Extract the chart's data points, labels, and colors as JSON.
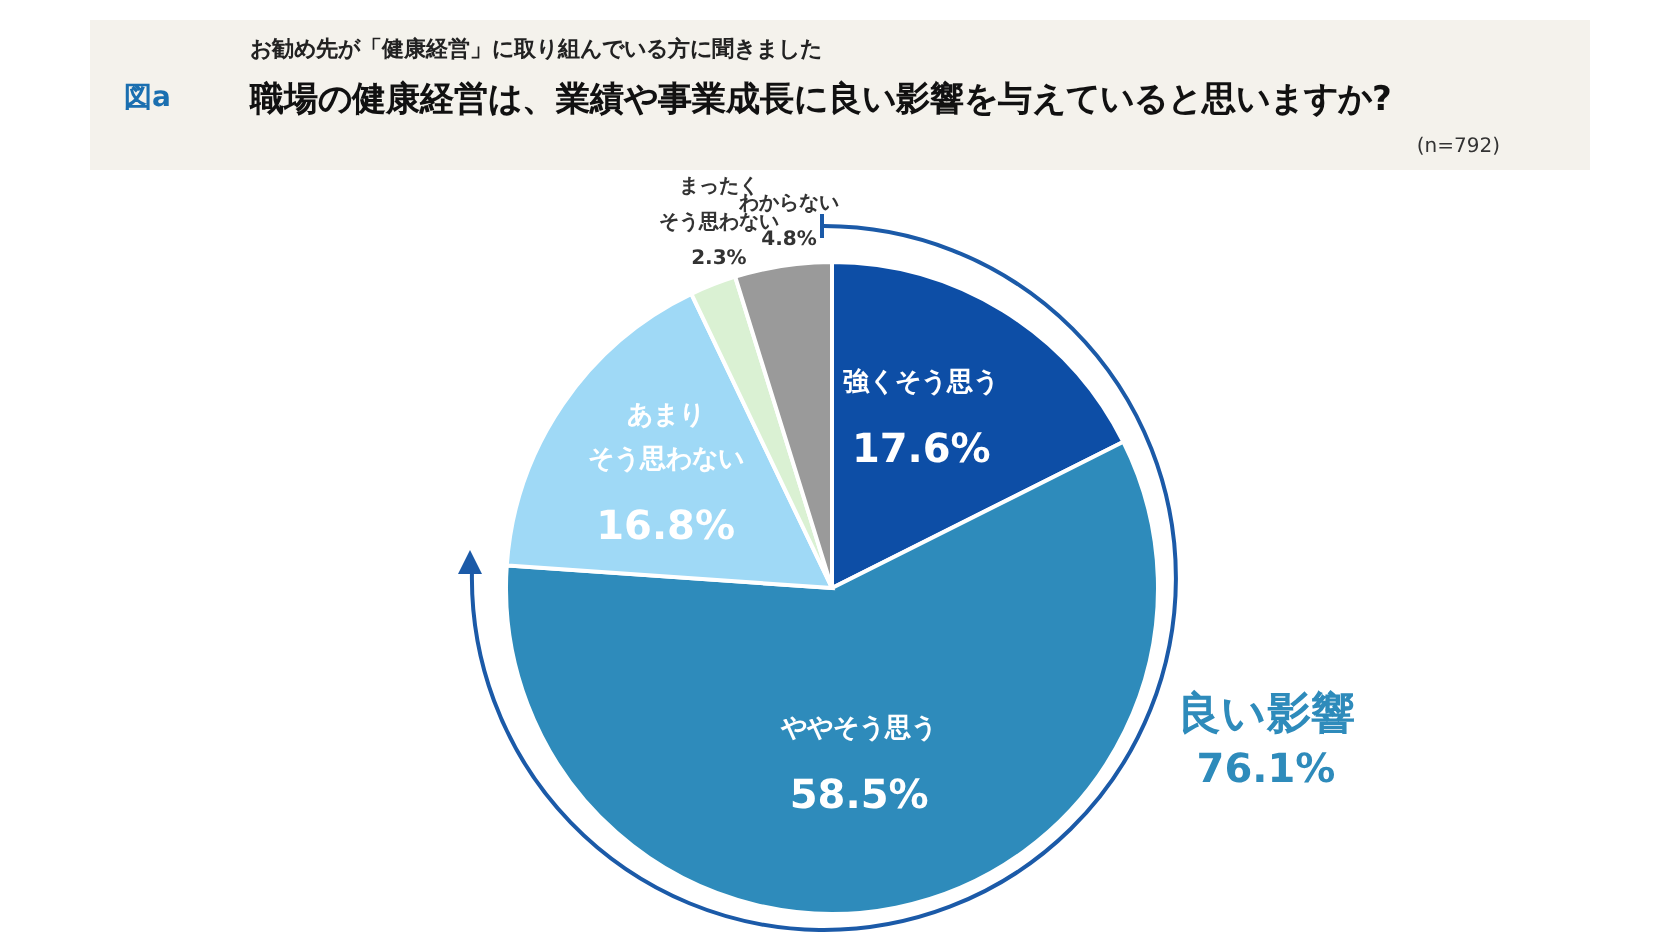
{
  "chart_data": {
    "type": "pie",
    "title": "職場の健康経営は、業績や事業成長に良い影響を与えていると思いますか?",
    "subtitle": "お勧め先が「健康経営」に取り組んでいる方に聞きました",
    "annotations": [
      "図a",
      "(n=792)",
      "良い影響",
      "76.1%"
    ],
    "categories": [
      "強くそう思う",
      "ややそう思う",
      "あまりそう思わない",
      "まったくそう思わない",
      "わからない"
    ],
    "values": [
      17.6,
      58.5,
      16.8,
      2.3,
      4.8
    ],
    "value_labels": [
      "17.6%",
      "58.5%",
      "16.8%",
      "2.3%",
      "4.8%"
    ],
    "colors": [
      "#0d4ea6",
      "#2e8bbb",
      "#9fd9f6",
      "#daf1d3",
      "#9a9a9a"
    ]
  }
}
